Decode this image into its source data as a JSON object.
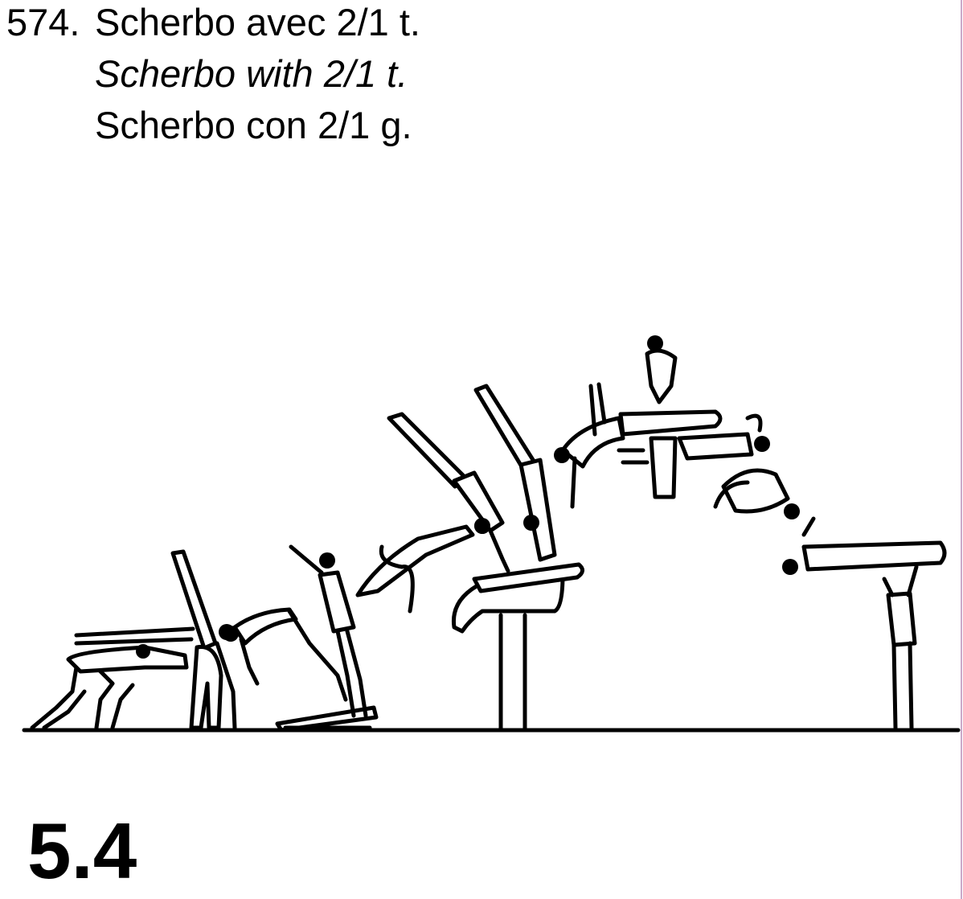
{
  "element": {
    "number": "574.",
    "name_fr": "Scherbo avec 2/1 t.",
    "name_en": "Scherbo with 2/1 t.",
    "name_es": "Scherbo con 2/1 g.",
    "difficulty_value": "5.4"
  },
  "colors": {
    "ink": "#000000",
    "background": "#ffffff",
    "edge_rule": "#c9a8c9"
  }
}
